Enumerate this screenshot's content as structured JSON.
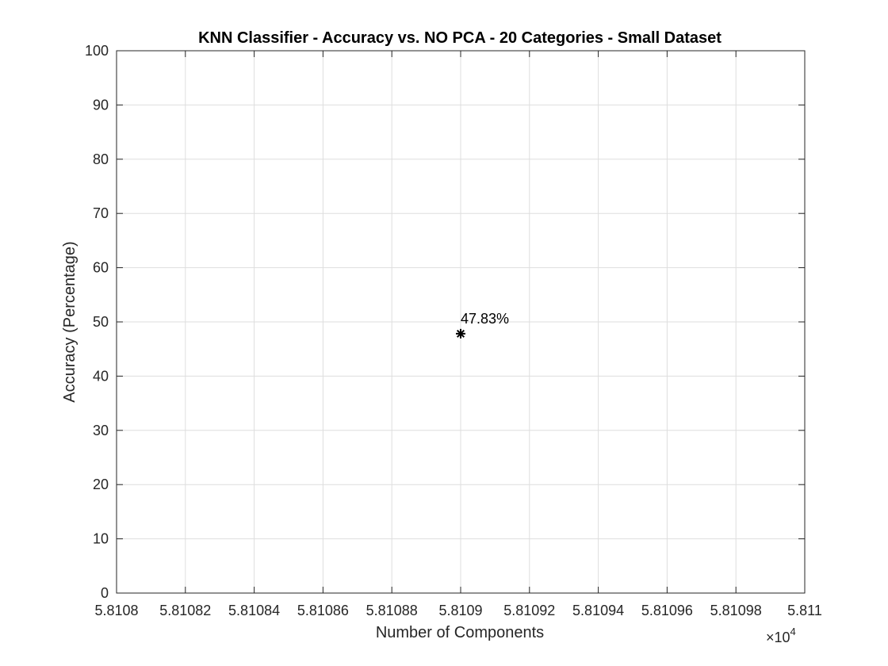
{
  "chart_data": {
    "type": "scatter",
    "title": "KNN Classifier - Accuracy vs. NO PCA - 20 Categories - Small Dataset",
    "xlabel": "Number of Components",
    "ylabel": "Accuracy (Percentage)",
    "xlim": [
      58108,
      58110
    ],
    "ylim": [
      0,
      100
    ],
    "x_ticks": [
      58108,
      58108.2,
      58108.4,
      58108.6,
      58108.8,
      58109,
      58109.2,
      58109.4,
      58109.6,
      58109.8,
      58110
    ],
    "x_tick_labels": [
      "5.8108",
      "5.81082",
      "5.81084",
      "5.81086",
      "5.81088",
      "5.8109",
      "5.81092",
      "5.81094",
      "5.81096",
      "5.81098",
      "5.811"
    ],
    "x_exponent_label": "×10",
    "x_exponent_power": "4",
    "y_ticks": [
      0,
      10,
      20,
      30,
      40,
      50,
      60,
      70,
      80,
      90,
      100
    ],
    "y_tick_labels": [
      "0",
      "10",
      "20",
      "30",
      "40",
      "50",
      "60",
      "70",
      "80",
      "90",
      "100"
    ],
    "grid": true,
    "points": [
      {
        "x": 58109,
        "y": 47.83,
        "marker": "asterisk",
        "label": "47.83%"
      }
    ]
  }
}
